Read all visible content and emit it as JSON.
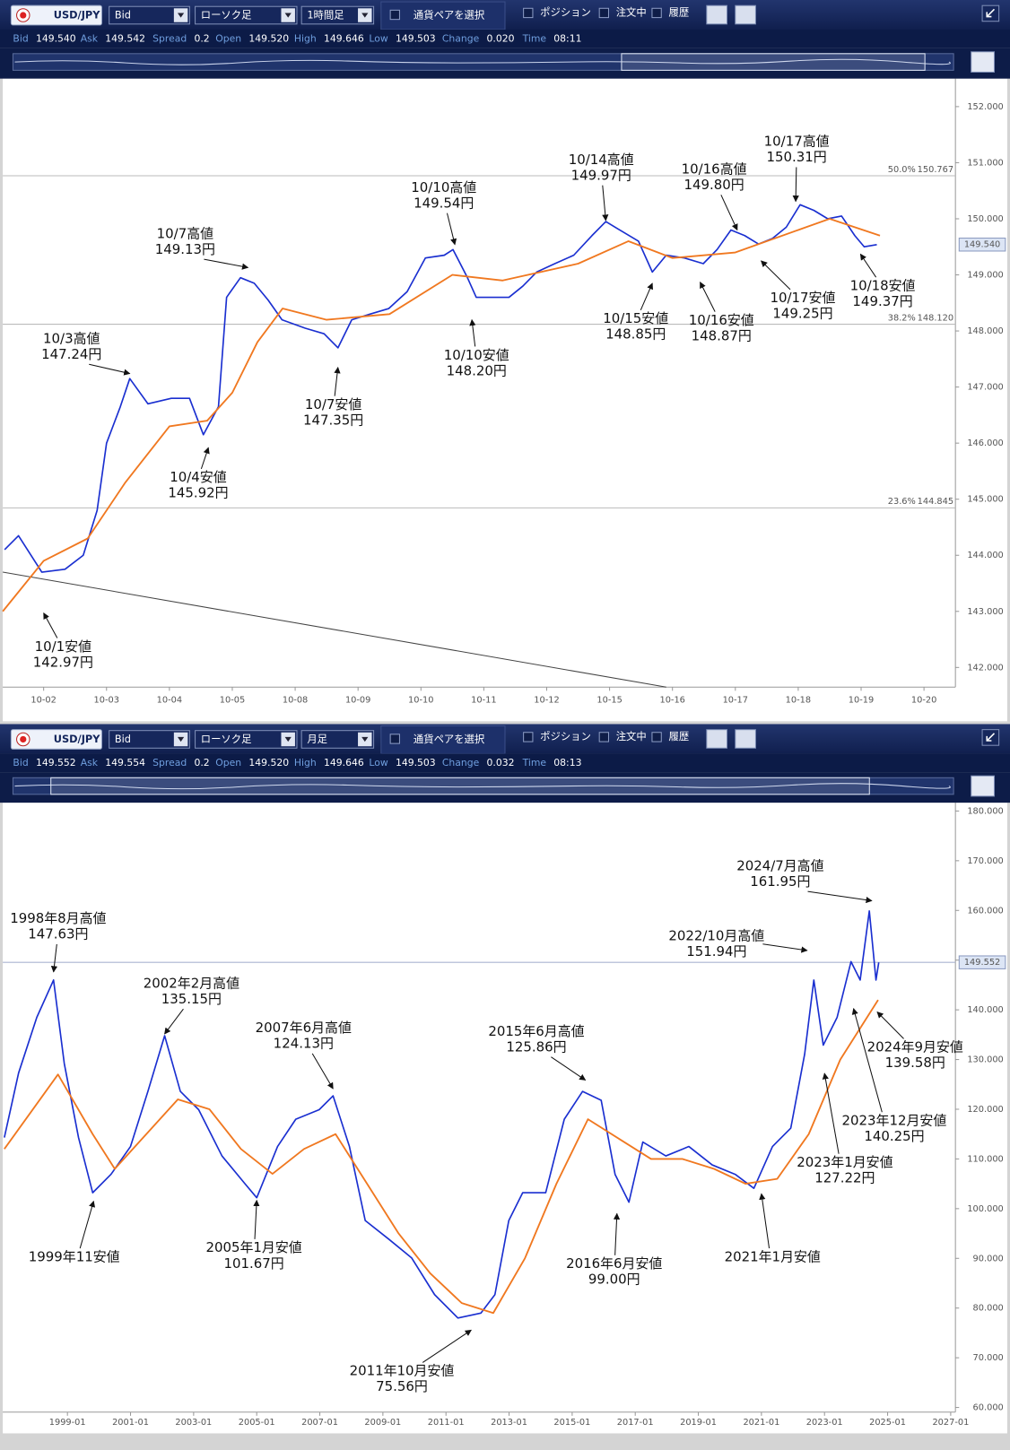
{
  "panels": [
    {
      "toolbar": {
        "symbol": "USD/JPY",
        "price_type": "Bid",
        "chart_type": "ローソク足",
        "timeframe": "1時間足",
        "pair_select": "通貨ペアを選択",
        "toggles": [
          "ポジション",
          "注文中",
          "履歴"
        ]
      },
      "quote": [
        {
          "label": "Bid",
          "value": "149.540"
        },
        {
          "label": "Ask",
          "value": "149.542"
        },
        {
          "label": "Spread",
          "value": "0.2"
        },
        {
          "label": "Open",
          "value": "149.520"
        },
        {
          "label": "High",
          "value": "149.646"
        },
        {
          "label": "Low",
          "value": "149.503"
        },
        {
          "label": "Change",
          "value": "0.020"
        },
        {
          "label": "Time",
          "value": "08:11"
        }
      ]
    },
    {
      "toolbar": {
        "symbol": "USD/JPY",
        "price_type": "Bid",
        "chart_type": "ローソク足",
        "timeframe": "月足",
        "pair_select": "通貨ペアを選択",
        "toggles": [
          "ポジション",
          "注文中",
          "履歴"
        ]
      },
      "quote": [
        {
          "label": "Bid",
          "value": "149.552"
        },
        {
          "label": "Ask",
          "value": "149.554"
        },
        {
          "label": "Spread",
          "value": "0.2"
        },
        {
          "label": "Open",
          "value": "149.520"
        },
        {
          "label": "High",
          "value": "149.646"
        },
        {
          "label": "Low",
          "value": "149.503"
        },
        {
          "label": "Change",
          "value": "0.032"
        },
        {
          "label": "Time",
          "value": "08:13"
        }
      ]
    }
  ],
  "chart_data": [
    {
      "type": "line",
      "xlim": [
        -0.65,
        14.5
      ],
      "ylim": [
        141.65,
        152.45
      ],
      "xticks": [
        {
          "value": 0,
          "label": "10-02"
        },
        {
          "value": 1,
          "label": "10-03"
        },
        {
          "value": 2,
          "label": "10-04"
        },
        {
          "value": 3,
          "label": "10-05"
        },
        {
          "value": 4,
          "label": "10-08"
        },
        {
          "value": 5,
          "label": "10-09"
        },
        {
          "value": 6,
          "label": "10-10"
        },
        {
          "value": 7,
          "label": "10-11"
        },
        {
          "value": 8,
          "label": "10-12"
        },
        {
          "value": 9,
          "label": "10-15"
        },
        {
          "value": 10,
          "label": "10-16"
        },
        {
          "value": 11,
          "label": "10-17"
        },
        {
          "value": 12,
          "label": "10-18"
        },
        {
          "value": 13,
          "label": "10-19"
        },
        {
          "value": 14,
          "label": "10-20"
        }
      ],
      "yticks": [
        {
          "value": 152,
          "label": "152.000"
        },
        {
          "value": 151,
          "label": "151.000"
        },
        {
          "value": 150,
          "label": "150.000"
        },
        {
          "value": 149,
          "label": "149.000"
        },
        {
          "value": 148,
          "label": "148.000"
        },
        {
          "value": 147,
          "label": "147.000"
        },
        {
          "value": 146,
          "label": "146.000"
        },
        {
          "value": 145,
          "label": "145.000"
        },
        {
          "value": 144,
          "label": "144.000"
        },
        {
          "value": 143,
          "label": "143.000"
        },
        {
          "value": 142,
          "label": "142.000"
        }
      ],
      "series": [
        {
          "color": "#1a2fd0",
          "x": [
            -0.62,
            -0.4,
            -0.03,
            0.34,
            0.63,
            0.85,
            1.0,
            1.22,
            1.37,
            1.66,
            2.03,
            2.32,
            2.54,
            2.78,
            2.91,
            3.13,
            3.35,
            3.57,
            3.79,
            4.16,
            4.46,
            4.68,
            4.9,
            5.19,
            5.49,
            5.78,
            6.07,
            6.37,
            6.51,
            6.74,
            6.88,
            7.1,
            7.4,
            7.62,
            7.84,
            8.13,
            8.43,
            8.72,
            8.94,
            9.16,
            9.46,
            9.68,
            9.9,
            10.19,
            10.49,
            10.71,
            10.93,
            11.15,
            11.37,
            11.59,
            11.81,
            12.03,
            12.25,
            12.47,
            12.69,
            12.9,
            13.05,
            13.25
          ],
          "values": [
            144.1,
            144.35,
            143.7,
            143.75,
            144.0,
            144.8,
            146.0,
            146.65,
            147.15,
            146.7,
            146.8,
            146.8,
            146.15,
            146.65,
            148.6,
            148.95,
            148.85,
            148.55,
            148.2,
            148.05,
            147.95,
            147.7,
            148.2,
            148.3,
            148.4,
            148.7,
            149.3,
            149.35,
            149.45,
            148.95,
            148.6,
            148.6,
            148.6,
            148.8,
            149.05,
            149.2,
            149.35,
            149.7,
            149.95,
            149.8,
            149.6,
            149.05,
            149.35,
            149.3,
            149.2,
            149.45,
            149.8,
            149.7,
            149.55,
            149.65,
            149.85,
            150.25,
            150.15,
            150.0,
            150.05,
            149.7,
            149.5,
            149.54
          ]
        },
        {
          "color": "#f07820",
          "x": [
            -0.65,
            0,
            0.7,
            1.3,
            2.0,
            2.6,
            3.0,
            3.4,
            3.8,
            4.5,
            5.5,
            6.5,
            7.3,
            8.5,
            9.3,
            10.0,
            11.0,
            12.0,
            12.5,
            13.3
          ],
          "values": [
            143.0,
            143.9,
            144.3,
            145.3,
            146.3,
            146.4,
            146.9,
            147.8,
            148.4,
            148.2,
            148.3,
            149.0,
            148.9,
            149.2,
            149.6,
            149.3,
            149.4,
            149.8,
            150.0,
            149.7
          ]
        }
      ],
      "hlines": [
        {
          "value": 150.767,
          "label": "150.767",
          "level": "50.0%"
        },
        {
          "value": 148.12,
          "label": "148.120",
          "level": "38.2%"
        },
        {
          "value": 144.845,
          "label": "144.845",
          "level": "23.6%"
        }
      ],
      "current": {
        "value": 149.54,
        "label": "149.540"
      },
      "current_line": false,
      "trendline": {
        "x": [
          -0.65,
          9.9
        ],
        "y": [
          143.7,
          141.65
        ]
      },
      "annotations": [
        {
          "text": [
            "10/1安値",
            "142.97円"
          ],
          "x": 0,
          "y": 142.97
        },
        {
          "text": [
            "10/3高値",
            "147.24円"
          ],
          "x": 1.37,
          "y": 147.24
        },
        {
          "text": [
            "10/4安値",
            "145.92円"
          ],
          "x": 2.62,
          "y": 145.92
        },
        {
          "text": [
            "10/7高値",
            "149.13円"
          ],
          "x": 3.25,
          "y": 149.13
        },
        {
          "text": [
            "10/7安値",
            "147.35円"
          ],
          "x": 4.68,
          "y": 147.35
        },
        {
          "text": [
            "10/10高値",
            "149.54円"
          ],
          "x": 6.54,
          "y": 149.54
        },
        {
          "text": [
            "10/10安値",
            "148.20円"
          ],
          "x": 6.81,
          "y": 148.2
        },
        {
          "text": [
            "10/14高値",
            "149.97円"
          ],
          "x": 8.94,
          "y": 149.97
        },
        {
          "text": [
            "10/15安値",
            "148.85円"
          ],
          "x": 9.68,
          "y": 148.85
        },
        {
          "text": [
            "10/16高値",
            "149.80円"
          ],
          "x": 11.03,
          "y": 149.8
        },
        {
          "text": [
            "10/16安値",
            "148.87円"
          ],
          "x": 10.44,
          "y": 148.87
        },
        {
          "text": [
            "10/17高値",
            "150.31円"
          ],
          "x": 11.96,
          "y": 150.31
        },
        {
          "text": [
            "10/17安値",
            "149.25円"
          ],
          "x": 11.41,
          "y": 149.25
        },
        {
          "text": [
            "10/18安値",
            "149.37円"
          ],
          "x": 12.99,
          "y": 149.37
        }
      ]
    },
    {
      "type": "line",
      "xlim": [
        1996.95,
        2027.15
      ],
      "ylim": [
        59.07,
        182.05
      ],
      "xticks": [
        {
          "value": 1999,
          "label": "1999-01"
        },
        {
          "value": 2001,
          "label": "2001-01"
        },
        {
          "value": 2003,
          "label": "2003-01"
        },
        {
          "value": 2005,
          "label": "2005-01"
        },
        {
          "value": 2007,
          "label": "2007-01"
        },
        {
          "value": 2009,
          "label": "2009-01"
        },
        {
          "value": 2011,
          "label": "2011-01"
        },
        {
          "value": 2013,
          "label": "2013-01"
        },
        {
          "value": 2015,
          "label": "2015-01"
        },
        {
          "value": 2017,
          "label": "2017-01"
        },
        {
          "value": 2019,
          "label": "2019-01"
        },
        {
          "value": 2021,
          "label": "2021-01"
        },
        {
          "value": 2023,
          "label": "2023-01"
        },
        {
          "value": 2025,
          "label": "2025-01"
        },
        {
          "value": 2027,
          "label": "2027-01"
        }
      ],
      "yticks": [
        {
          "value": 180,
          "label": "180.000"
        },
        {
          "value": 170,
          "label": "170.000"
        },
        {
          "value": 160,
          "label": "160.000"
        },
        {
          "value": 150,
          "label": "150.000"
        },
        {
          "value": 140,
          "label": "140.000"
        },
        {
          "value": 130,
          "label": "130.000"
        },
        {
          "value": 120,
          "label": "120.000"
        },
        {
          "value": 110,
          "label": "110.000"
        },
        {
          "value": 100,
          "label": "100.000"
        },
        {
          "value": 90,
          "label": "90.000"
        },
        {
          "value": 80,
          "label": "80.000"
        },
        {
          "value": 70,
          "label": "70.000"
        },
        {
          "value": 60,
          "label": "60.000"
        }
      ],
      "series": [
        {
          "color": "#1a2fd0",
          "x": [
            1997.0,
            1997.45,
            1998.03,
            1998.56,
            1998.9,
            1999.35,
            1999.8,
            2000.38,
            2001.0,
            2001.55,
            2002.08,
            2002.58,
            2003.16,
            2003.9,
            2004.63,
            2005.0,
            2005.66,
            2006.24,
            2006.98,
            2007.42,
            2007.94,
            2008.44,
            2009.18,
            2009.91,
            2010.64,
            2011.38,
            2012.11,
            2012.55,
            2012.99,
            2013.43,
            2014.16,
            2014.75,
            2015.33,
            2015.92,
            2016.36,
            2016.8,
            2017.24,
            2017.97,
            2018.7,
            2019.44,
            2020.17,
            2020.76,
            2021.35,
            2021.93,
            2022.37,
            2022.66,
            2022.96,
            2023.4,
            2023.84,
            2024.13,
            2024.42,
            2024.63,
            2024.72
          ],
          "values": [
            114.3,
            127.3,
            138.5,
            146.0,
            129.2,
            114.3,
            103.2,
            106.9,
            112.5,
            123.6,
            134.8,
            123.6,
            119.9,
            110.6,
            105.0,
            102.2,
            112.5,
            118.0,
            119.9,
            122.7,
            112.5,
            97.6,
            93.9,
            90.1,
            82.7,
            78.0,
            79.0,
            82.7,
            97.6,
            103.2,
            103.2,
            118.0,
            123.6,
            121.8,
            106.9,
            101.3,
            113.4,
            110.6,
            112.5,
            108.8,
            106.9,
            104.1,
            112.5,
            116.2,
            131.1,
            146.0,
            132.9,
            138.5,
            149.7,
            146.0,
            159.9,
            146.0,
            149.55
          ]
        },
        {
          "color": "#f07820",
          "x": [
            1997.0,
            1998.7,
            1999.8,
            2000.5,
            2001.5,
            2002.5,
            2003.5,
            2004.5,
            2005.5,
            2006.5,
            2007.5,
            2008.5,
            2009.5,
            2010.5,
            2011.5,
            2012.5,
            2013.5,
            2014.5,
            2015.5,
            2016.5,
            2017.5,
            2018.5,
            2019.5,
            2020.5,
            2021.5,
            2022.5,
            2023.5,
            2024.7
          ],
          "values": [
            112,
            127,
            115,
            108,
            115,
            122,
            120,
            112,
            107,
            112,
            115,
            105,
            95,
            87,
            81,
            79,
            90,
            105,
            118,
            114,
            110,
            110,
            108,
            105,
            106,
            115,
            130,
            142
          ]
        }
      ],
      "hlines": [],
      "current": {
        "value": 149.552,
        "label": "149.552"
      },
      "current_line": true,
      "annotations": [
        {
          "text": [
            "1998年8月高値",
            "147.63円"
          ],
          "x": 1998.56,
          "y": 147.63
        },
        {
          "text": [
            "1999年11安値"
          ],
          "x": 1999.83,
          "y": 101.5
        },
        {
          "text": [
            "2002年2月高値",
            "135.15円"
          ],
          "x": 2002.08,
          "y": 135.15
        },
        {
          "text": [
            "2005年1月安値",
            "101.67円"
          ],
          "x": 2005.0,
          "y": 101.67
        },
        {
          "text": [
            "2007年6月高値",
            "124.13円"
          ],
          "x": 2007.42,
          "y": 124.13
        },
        {
          "text": [
            "2011年10月安値",
            "75.56円"
          ],
          "x": 2011.8,
          "y": 75.56
        },
        {
          "text": [
            "2015年6月高値",
            "125.86円"
          ],
          "x": 2015.42,
          "y": 125.86
        },
        {
          "text": [
            "2016年6月安値",
            "99.00円"
          ],
          "x": 2016.42,
          "y": 99.0
        },
        {
          "text": [
            "2021年1月安値"
          ],
          "x": 2021.0,
          "y": 103.0
        },
        {
          "text": [
            "2022/10月高値",
            "151.94円"
          ],
          "x": 2022.45,
          "y": 151.94
        },
        {
          "text": [
            "2024/7月高値",
            "161.95円"
          ],
          "x": 2024.5,
          "y": 161.95
        },
        {
          "text": [
            "2024年9月安値",
            "139.58円"
          ],
          "x": 2024.67,
          "y": 139.58
        },
        {
          "text": [
            "2023年12月安値",
            "140.25円"
          ],
          "x": 2023.92,
          "y": 140.25
        },
        {
          "text": [
            "2023年1月安値",
            "127.22円"
          ],
          "x": 2023.0,
          "y": 127.22
        }
      ]
    }
  ]
}
